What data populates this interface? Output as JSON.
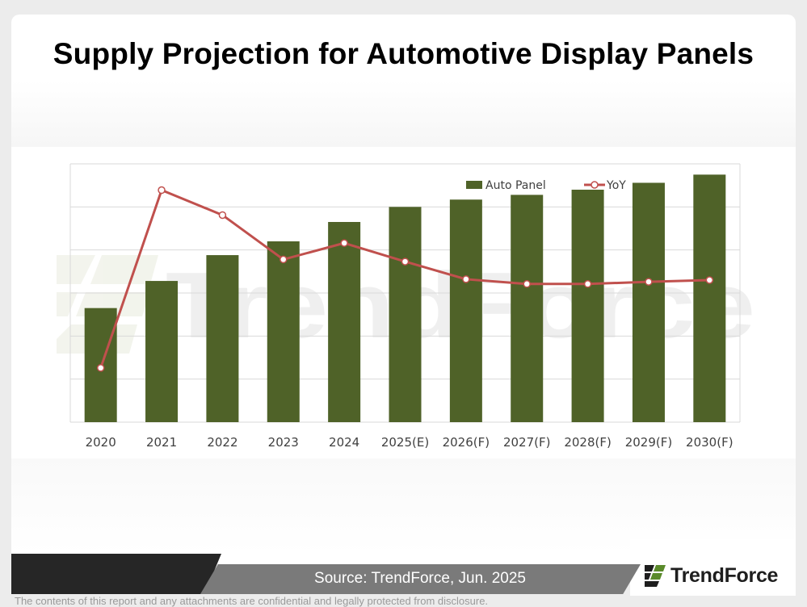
{
  "title": "Supply Projection for Automotive Display Panels",
  "chart_data": {
    "type": "bar",
    "categories": [
      "2020",
      "2021",
      "2022",
      "2023",
      "2024",
      "2025(E)",
      "2026(F)",
      "2027(F)",
      "2028(F)",
      "2029(F)",
      "2030(F)"
    ],
    "series": [
      {
        "name": "Auto Panel",
        "type": "bar",
        "color": "#4f6228",
        "values": [
          26.5,
          32.8,
          38.8,
          42.0,
          46.5,
          50.0,
          51.7,
          52.8,
          54.0,
          55.6,
          57.5
        ]
      },
      {
        "name": "YoY",
        "type": "line",
        "color": "#c0504d",
        "values": [
          12.6,
          53.9,
          48.1,
          37.8,
          41.6,
          37.3,
          33.2,
          32.1,
          32.1,
          32.6,
          33.0
        ]
      }
    ],
    "ylim": [
      0,
      60
    ],
    "y_gridlines": [
      0,
      10,
      20,
      30,
      40,
      50,
      60
    ],
    "y_tick_labels_shown": false,
    "grid": true,
    "legend": "top-right"
  },
  "watermark": "TrendForce",
  "footer": {
    "source": "Source: TrendForce, Jun. 2025",
    "brand": "TrendForce",
    "disclaimer": "The contents of this report and any attachments are confidential and legally protected from disclosure."
  },
  "colors": {
    "bar": "#4f6228",
    "line": "#c0504d",
    "footer_dark": "#262626",
    "footer_grey": "#7a7a7a"
  }
}
